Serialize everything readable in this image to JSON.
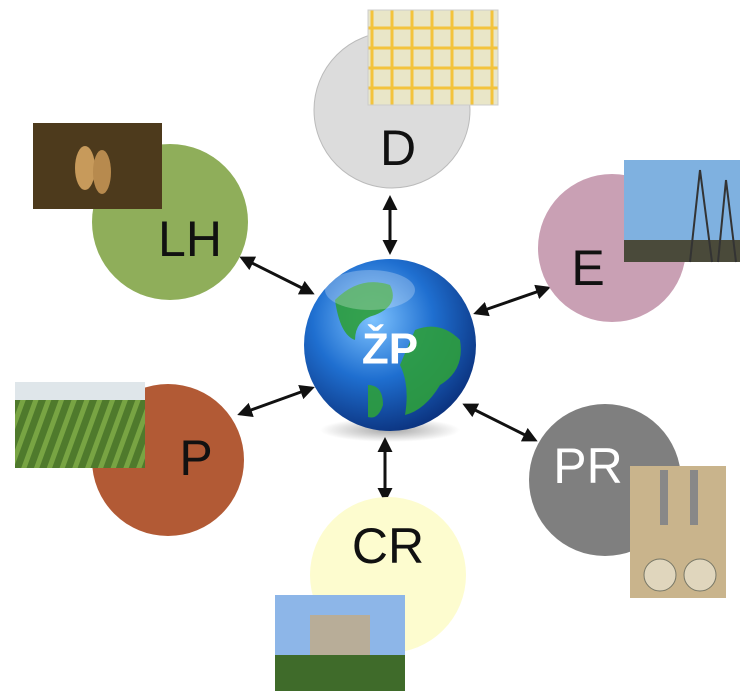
{
  "center": {
    "label": "ŽP"
  },
  "nodes": [
    {
      "label": "D"
    },
    {
      "label": "LH"
    },
    {
      "label": "E"
    },
    {
      "label": "P"
    },
    {
      "label": "PR"
    },
    {
      "label": "CR"
    }
  ]
}
